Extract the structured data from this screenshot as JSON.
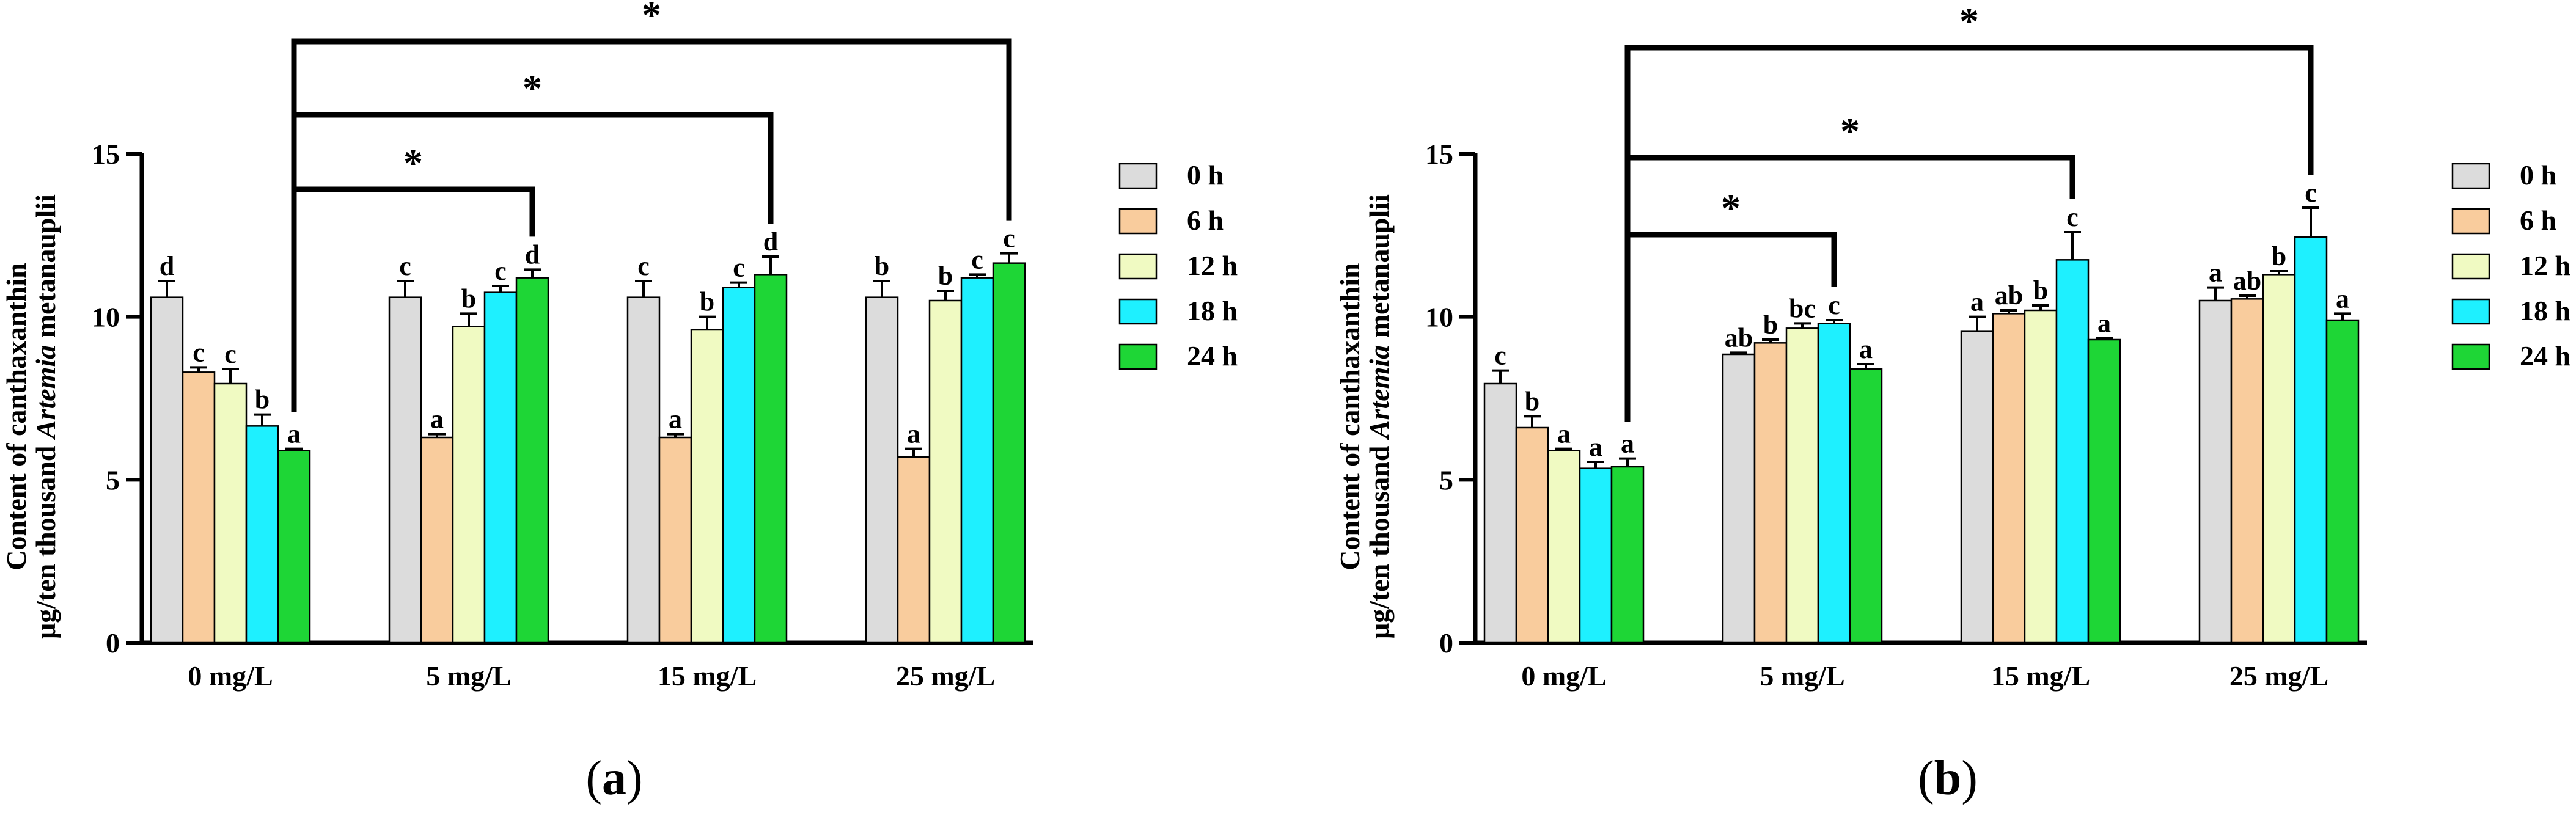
{
  "chart_data": [
    {
      "type": "bar",
      "panel_label": "a",
      "ylabel_line1": "Content of canthaxanthin",
      "ylabel_line2_prefix": "μg/ten thousand ",
      "ylabel_line2_italic": "Artemia",
      "ylabel_line2_suffix": " metanauplii",
      "xlabel": "",
      "ylim": [
        0,
        15
      ],
      "yticks": [
        0,
        5,
        10,
        15
      ],
      "categories": [
        "0 mg/L",
        "5 mg/L",
        "15 mg/L",
        "25 mg/L"
      ],
      "series": [
        {
          "name": "0 h",
          "color": "#dcdcdc",
          "values": [
            10.6,
            10.6,
            10.6,
            10.6
          ],
          "errors": [
            0.5,
            0.5,
            0.5,
            0.5
          ],
          "letters": [
            "d",
            "c",
            "c",
            "b"
          ]
        },
        {
          "name": "6 h",
          "color": "#f9cc9d",
          "values": [
            8.3,
            6.3,
            6.3,
            5.7
          ],
          "errors": [
            0.15,
            0.1,
            0.1,
            0.25
          ],
          "letters": [
            "c",
            "a",
            "a",
            "a"
          ]
        },
        {
          "name": "12 h",
          "color": "#f0fac2",
          "values": [
            7.95,
            9.7,
            9.6,
            10.5
          ],
          "errors": [
            0.45,
            0.4,
            0.4,
            0.3
          ],
          "letters": [
            "c",
            "b",
            "b",
            "b"
          ]
        },
        {
          "name": "18 h",
          "color": "#1ef0ff",
          "values": [
            6.65,
            10.75,
            10.9,
            11.2
          ],
          "errors": [
            0.35,
            0.2,
            0.15,
            0.1
          ],
          "letters": [
            "b",
            "c",
            "c",
            "c"
          ]
        },
        {
          "name": "24 h",
          "color": "#1ed636",
          "values": [
            5.9,
            11.2,
            11.3,
            11.65
          ],
          "errors": [
            0.05,
            0.25,
            0.55,
            0.3
          ],
          "letters": [
            "a",
            "d",
            "d",
            "c"
          ]
        }
      ],
      "significance": [
        {
          "from_category": 0,
          "to_category": 1,
          "label": "*"
        },
        {
          "from_category": 0,
          "to_category": 2,
          "label": "*"
        },
        {
          "from_category": 0,
          "to_category": 3,
          "label": "*"
        }
      ]
    },
    {
      "type": "bar",
      "panel_label": "b",
      "ylabel_line1": "Content of canthaxanthin",
      "ylabel_line2_prefix": "μg/ten thousand ",
      "ylabel_line2_italic": "Artemia",
      "ylabel_line2_suffix": " metanauplii",
      "xlabel": "",
      "ylim": [
        0,
        15
      ],
      "yticks": [
        0,
        5,
        10,
        15
      ],
      "categories": [
        "0 mg/L",
        "5 mg/L",
        "15 mg/L",
        "25 mg/L"
      ],
      "series": [
        {
          "name": "0 h",
          "color": "#dcdcdc",
          "values": [
            7.95,
            8.85,
            9.55,
            10.5
          ],
          "errors": [
            0.4,
            0.05,
            0.45,
            0.4
          ],
          "letters": [
            "c",
            "ab",
            "a",
            "a"
          ]
        },
        {
          "name": "6 h",
          "color": "#f9cc9d",
          "values": [
            6.6,
            9.2,
            10.1,
            10.55
          ],
          "errors": [
            0.35,
            0.1,
            0.1,
            0.1
          ],
          "letters": [
            "b",
            "b",
            "ab",
            "ab"
          ]
        },
        {
          "name": "12 h",
          "color": "#f0fac2",
          "values": [
            5.9,
            9.65,
            10.2,
            11.3
          ],
          "errors": [
            0.05,
            0.15,
            0.15,
            0.1
          ],
          "letters": [
            "a",
            "bc",
            "b",
            "b"
          ]
        },
        {
          "name": "18 h",
          "color": "#1ef0ff",
          "values": [
            5.35,
            9.8,
            11.75,
            12.45
          ],
          "errors": [
            0.2,
            0.1,
            0.85,
            0.9
          ],
          "letters": [
            "a",
            "c",
            "c",
            "c"
          ]
        },
        {
          "name": "24 h",
          "color": "#1ed636",
          "values": [
            5.4,
            8.4,
            9.3,
            9.9
          ],
          "errors": [
            0.25,
            0.15,
            0.05,
            0.2
          ],
          "letters": [
            "a",
            "a",
            "a",
            "a"
          ]
        }
      ],
      "significance": [
        {
          "from_category": 0,
          "to_category": 1,
          "label": "*"
        },
        {
          "from_category": 0,
          "to_category": 2,
          "label": "*"
        },
        {
          "from_category": 0,
          "to_category": 3,
          "label": "*"
        }
      ]
    }
  ]
}
